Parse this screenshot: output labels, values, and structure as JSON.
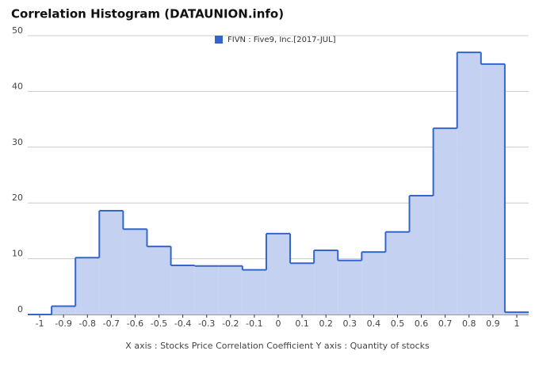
{
  "chart_data": {
    "type": "step-area",
    "title": "Correlation Histogram (DATAUNION.info)",
    "footer": "X axis : Stocks Price Correlation Coefficient  Y axis : Quantity of stocks",
    "series": [
      {
        "name": "FIVN : Five9, Inc.[2017-JUL]",
        "color": "#3366cc",
        "fill": "#c5d1f0",
        "values": [
          0,
          1.5,
          10.2,
          18.6,
          15.3,
          12.2,
          8.8,
          8.7,
          8.7,
          8,
          14.5,
          9.2,
          11.5,
          9.7,
          11.2,
          14.8,
          21.3,
          33.4,
          47,
          44.9,
          0.4
        ]
      }
    ],
    "x": [
      -1,
      -0.9,
      -0.8,
      -0.7,
      -0.6,
      -0.5,
      -0.4,
      -0.3,
      -0.2,
      -0.1,
      0,
      0.1,
      0.2,
      0.3,
      0.4,
      0.5,
      0.6,
      0.7,
      0.8,
      0.9,
      1
    ],
    "bin_width": 0.1,
    "xlim": [
      -1.05,
      1.05
    ],
    "xticks": [
      -1,
      -0.9,
      -0.8,
      -0.7,
      -0.6,
      -0.5,
      -0.4,
      -0.3,
      -0.2,
      -0.1,
      0,
      0.1,
      0.2,
      0.3,
      0.4,
      0.5,
      0.6,
      0.7,
      0.8,
      0.9,
      1
    ],
    "ylim": [
      0,
      50
    ],
    "yticks": [
      0,
      10,
      20,
      30,
      40,
      50
    ],
    "grid": true
  }
}
